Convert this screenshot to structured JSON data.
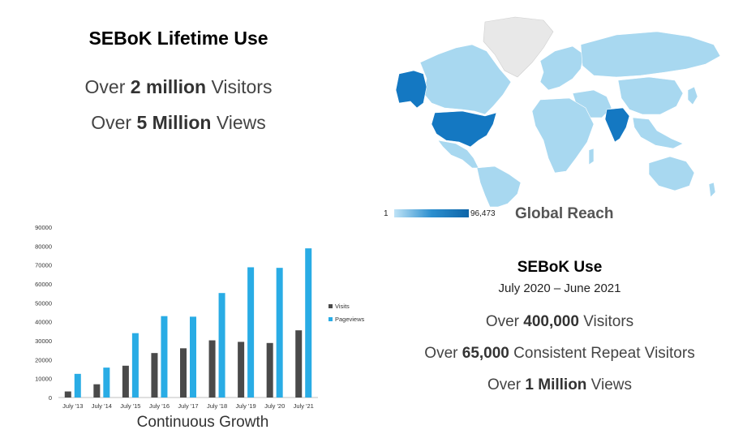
{
  "lifetime": {
    "title": "SEBoK Lifetime Use",
    "visitors_prefix": "Over ",
    "visitors_value": "2 million",
    "visitors_suffix": " Visitors",
    "views_prefix": "Over ",
    "views_value": "5 Million",
    "views_suffix": " Views"
  },
  "map": {
    "caption": "Global Reach",
    "scale_min": "1",
    "scale_max": "96,473",
    "colors": {
      "low": "#a8d8f0",
      "mid": "#48aee0",
      "high": "#1478c2",
      "none": "#e8e8e8",
      "border": "#ffffff"
    },
    "highlighted": [
      "United States",
      "India",
      "Alaska"
    ]
  },
  "recent": {
    "title": "SEBoK Use",
    "period": "July 2020 – June 2021",
    "visitors_prefix": "Over ",
    "visitors_value": "400,000",
    "visitors_suffix": " Visitors",
    "repeat_prefix": "Over ",
    "repeat_value": "65,000",
    "repeat_suffix": " Consistent Repeat Visitors",
    "views_prefix": "Over ",
    "views_value": "1 Million",
    "views_suffix": " Views"
  },
  "chart_caption": "Continuous Growth",
  "chart_data": {
    "type": "bar",
    "title": "",
    "xlabel": "",
    "ylabel": "",
    "categories": [
      "July '13",
      "July '14",
      "July '15",
      "July '16",
      "July '17",
      "July '18",
      "July '19",
      "July '20",
      "July '21"
    ],
    "series": [
      {
        "name": "Visits",
        "color": "#4a4a4a",
        "values": [
          3200,
          7000,
          16800,
          23500,
          26000,
          30200,
          29400,
          28800,
          35500
        ]
      },
      {
        "name": "Pageviews",
        "color": "#29ace5",
        "values": [
          12500,
          15800,
          34000,
          43000,
          42700,
          55200,
          68800,
          68500,
          78800
        ]
      }
    ],
    "ylim": [
      0,
      90000
    ],
    "yticks": [
      "0",
      "10000",
      "20000",
      "30000",
      "40000",
      "50000",
      "60000",
      "70000",
      "80000",
      "90000"
    ],
    "grid": false,
    "legend": "right"
  }
}
